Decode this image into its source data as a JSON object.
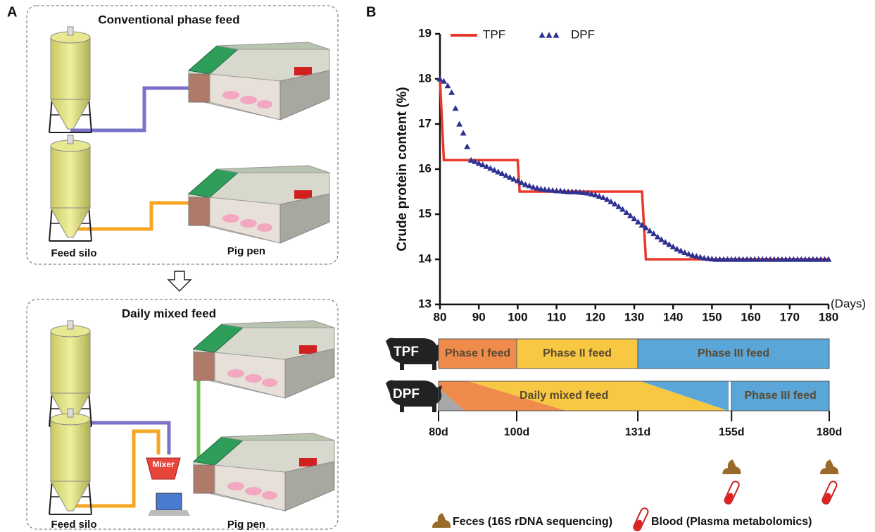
{
  "panel_a": {
    "label": "A",
    "top": {
      "title": "Conventional phase feed",
      "silo": "Feed silo",
      "pen": "Pig pen"
    },
    "bottom": {
      "title": "Daily mixed feed",
      "mixer": "Mixer",
      "silo": "Feed silo",
      "pen": "Pig pen"
    }
  },
  "panel_b_label": "B",
  "chart_data": {
    "type": "line",
    "ylabel": "Crude protein content (%)",
    "xlabel": "(Days)",
    "xlim": [
      80,
      180
    ],
    "xticks": [
      80,
      90,
      100,
      110,
      120,
      130,
      140,
      150,
      160,
      170,
      180
    ],
    "ylim": [
      13,
      19
    ],
    "yticks": [
      13,
      14,
      15,
      16,
      17,
      18,
      19
    ],
    "grid": false,
    "legend": "top-left",
    "series": [
      {
        "name": "TPF",
        "color": "#e8392b",
        "marker": "none",
        "x": [
          80,
          81,
          100,
          100.5,
          132,
          133,
          180
        ],
        "values": [
          18,
          16.2,
          16.2,
          15.5,
          15.5,
          14,
          14
        ]
      },
      {
        "name": "DPF",
        "color": "#2e3191",
        "marker": "triangle",
        "x": [
          80,
          81,
          82,
          83,
          84,
          85,
          86,
          87,
          88,
          89,
          90,
          91,
          92,
          93,
          94,
          95,
          96,
          97,
          98,
          99,
          100,
          101,
          102,
          103,
          104,
          105,
          106,
          107,
          108,
          109,
          110,
          111,
          112,
          113,
          114,
          115,
          116,
          117,
          118,
          119,
          120,
          121,
          122,
          123,
          124,
          125,
          126,
          127,
          128,
          129,
          130,
          131,
          132,
          133,
          134,
          135,
          136,
          137,
          138,
          139,
          140,
          141,
          142,
          143,
          144,
          145,
          146,
          147,
          148,
          149,
          150,
          151,
          152,
          153,
          154,
          155,
          156,
          157,
          158,
          159,
          160,
          161,
          162,
          163,
          164,
          165,
          166,
          167,
          168,
          169,
          170,
          171,
          172,
          173,
          174,
          175,
          176,
          177,
          178,
          179,
          180
        ],
        "values": [
          18,
          17.95,
          17.85,
          17.7,
          17.35,
          17,
          16.8,
          16.5,
          16.2,
          16.17,
          16.13,
          16.1,
          16.06,
          16.02,
          15.98,
          15.94,
          15.9,
          15.86,
          15.82,
          15.78,
          15.74,
          15.7,
          15.66,
          15.63,
          15.6,
          15.58,
          15.56,
          15.55,
          15.54,
          15.53,
          15.52,
          15.52,
          15.51,
          15.5,
          15.5,
          15.5,
          15.49,
          15.48,
          15.47,
          15.45,
          15.43,
          15.4,
          15.37,
          15.33,
          15.28,
          15.23,
          15.17,
          15.11,
          15.04,
          14.97,
          14.9,
          14.83,
          14.76,
          14.7,
          14.63,
          14.57,
          14.5,
          14.44,
          14.38,
          14.33,
          14.28,
          14.23,
          14.19,
          14.15,
          14.12,
          14.09,
          14.07,
          14.05,
          14.03,
          14.02,
          14.01,
          14,
          14,
          14,
          14,
          14,
          14,
          14,
          14,
          14,
          14,
          14,
          14,
          14,
          14,
          14,
          14,
          14,
          14,
          14,
          14,
          14,
          14,
          14,
          14,
          14,
          14,
          14,
          14,
          14,
          14
        ]
      }
    ]
  },
  "timeline": {
    "rows": [
      {
        "label": "TPF",
        "segments": [
          {
            "label": "Phase I feed",
            "start": 80,
            "end": 100,
            "color": "#ef8c4c"
          },
          {
            "label": "Phase II feed",
            "start": 100,
            "end": 131,
            "color": "#f8c842"
          },
          {
            "label": "Phase III feed",
            "start": 131,
            "end": 180,
            "color": "#5ba6d9"
          }
        ]
      },
      {
        "label": "DPF",
        "segments": [
          {
            "label": "Daily mixed feed",
            "start": 80,
            "end": 155
          },
          {
            "label": "Phase III feed",
            "start": 155,
            "end": 180,
            "color": "#5ba6d9"
          }
        ]
      }
    ],
    "ticks": [
      {
        "value": 80,
        "label": "80d"
      },
      {
        "value": 100,
        "label": "100d"
      },
      {
        "value": 131,
        "label": "131d"
      },
      {
        "value": 155,
        "label": "155d"
      },
      {
        "value": 180,
        "label": "180d"
      }
    ],
    "samples": [
      155,
      180
    ],
    "legend": [
      "Feces (16S rDNA sequencing)",
      "Blood (Plasma metabolomics)"
    ]
  }
}
